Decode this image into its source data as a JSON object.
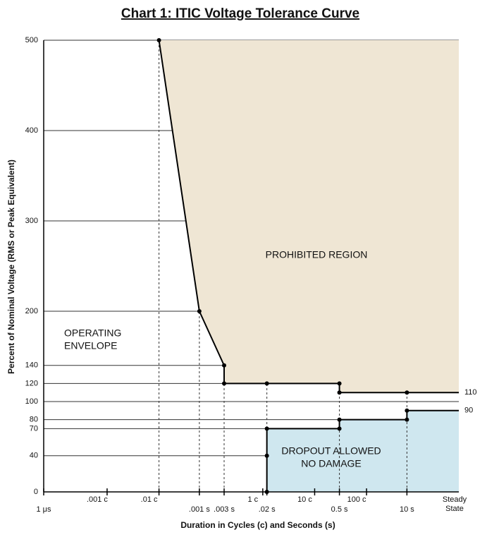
{
  "chart_data": {
    "type": "step-curve",
    "title": "Chart 1: ITIC Voltage Tolerance Curve",
    "x_label": "Duration in Cycles (c) and Seconds (s)",
    "y_label": "Percent of Nominal Voltage (RMS or Peak Equivalent)",
    "x_scale": "log",
    "xlim": [
      1e-06,
      100
    ],
    "xticks": [
      {
        "value": 1e-06,
        "label": "1 μs"
      },
      {
        "value": 1.667e-05,
        "label": ".001 c"
      },
      {
        "value": 0.0001667,
        "label": ".01 c"
      },
      {
        "value": 0.001,
        "label": ".001 s"
      },
      {
        "value": 0.003,
        "label": ".003 s"
      },
      {
        "value": 0.01667,
        "label": "1 c"
      },
      {
        "value": 0.02,
        "label": ".02 s"
      },
      {
        "value": 0.1667,
        "label": "10 c"
      },
      {
        "value": 0.5,
        "label": "0.5 s"
      },
      {
        "value": 1.667,
        "label": "100 c"
      },
      {
        "value": 10,
        "label": "10 s"
      }
    ],
    "x_end_label": [
      "Steady",
      "State"
    ],
    "ylim": [
      0,
      500
    ],
    "yticks": [
      0,
      40,
      70,
      80,
      100,
      120,
      140,
      200,
      300,
      400,
      500
    ],
    "grid": true,
    "series": [
      {
        "color": "#000000",
        "fill": "#efe6d4",
        "x": [
          0.0001667,
          0.001,
          0.003,
          0.003,
          0.02,
          0.5,
          0.5,
          10
        ],
        "values": [
          500,
          200,
          140,
          120,
          120,
          120,
          110,
          110
        ]
      },
      {
        "color": "#000000",
        "fill": "#cfe7ef",
        "x": [
          0.02,
          0.02,
          0.02,
          0.5,
          0.5,
          10,
          10
        ],
        "values": [
          0,
          40,
          70,
          70,
          80,
          80,
          90
        ]
      }
    ],
    "annotations": [
      {
        "text": [
          "PROHIBITED REGION"
        ]
      },
      {
        "text": [
          "OPERATING",
          "ENVELOPE"
        ]
      },
      {
        "text": [
          "DROPOUT ALLOWED",
          "NO DAMAGE"
        ]
      }
    ]
  }
}
